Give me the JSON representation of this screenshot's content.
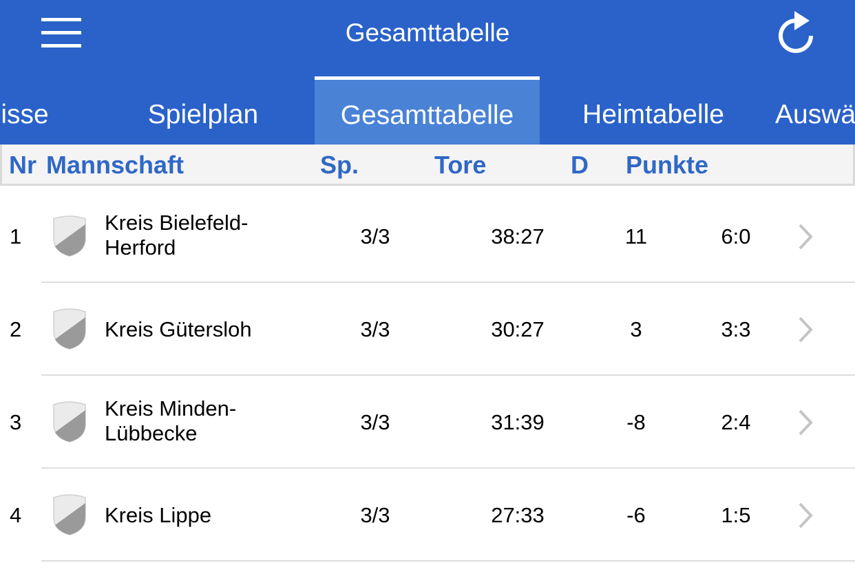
{
  "header": {
    "title": "Gesamttabelle",
    "menu_icon": "hamburger-menu-icon",
    "refresh_icon": "refresh-icon"
  },
  "tabs": [
    {
      "label": "isse",
      "active": false
    },
    {
      "label": "Spielplan",
      "active": false
    },
    {
      "label": "Gesamttabelle",
      "active": true
    },
    {
      "label": "Heimtabelle",
      "active": false
    },
    {
      "label": "Auswä",
      "active": false
    }
  ],
  "table": {
    "headers": {
      "nr": "Nr",
      "team": "Mannschaft",
      "sp": "Sp.",
      "tore": "Tore",
      "d": "D",
      "punkte": "Punkte"
    },
    "rows": [
      {
        "nr": "1",
        "team": "Kreis Bielefeld-\nHerford",
        "sp": "3/3",
        "tore": "38:27",
        "d": "11",
        "punkte": "6:0"
      },
      {
        "nr": "2",
        "team": "Kreis Gütersloh",
        "sp": "3/3",
        "tore": "30:27",
        "d": "3",
        "punkte": "3:3"
      },
      {
        "nr": "3",
        "team": "Kreis Minden-\nLübbecke",
        "sp": "3/3",
        "tore": "31:39",
        "d": "-8",
        "punkte": "2:4"
      },
      {
        "nr": "4",
        "team": "Kreis Lippe",
        "sp": "3/3",
        "tore": "27:33",
        "d": "-6",
        "punkte": "1:5"
      }
    ]
  },
  "colors": {
    "header_bg": "#2a62c9",
    "active_tab_bg": "#4a82d6",
    "header_text": "#2f68c6"
  }
}
